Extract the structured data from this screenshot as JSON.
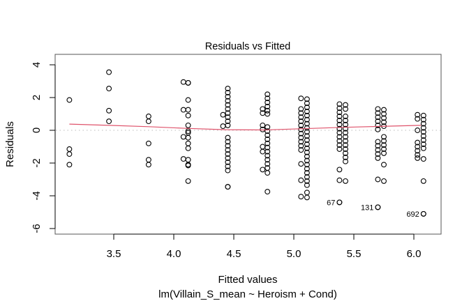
{
  "chart_data": {
    "type": "scatter",
    "title": "Residuals vs Fitted",
    "xlabel": "Fitted values",
    "sublabel": "lm(Villain_S_mean ~ Heroism + Cond)",
    "ylabel": "Residuals",
    "xlim": [
      3.07,
      6.18
    ],
    "ylim": [
      -6.3,
      4.4
    ],
    "x_ticks": [
      3.5,
      4.0,
      4.5,
      5.0,
      5.5,
      6.0
    ],
    "x_tick_labels": [
      "3.5",
      "4.0",
      "4.5",
      "5.0",
      "5.5",
      "6.0"
    ],
    "y_ticks": [
      4,
      2,
      0,
      -2,
      -4,
      -6
    ],
    "y_tick_labels": [
      "4",
      "2",
      "0",
      "-2",
      "-4",
      "-6"
    ],
    "reference_line": {
      "y": 0,
      "style": "dotted",
      "color": "#bbbbbb"
    },
    "smooth_line": {
      "color": "#df536b",
      "x": [
        3.13,
        3.46,
        3.79,
        4.1,
        4.43,
        4.76,
        5.08,
        5.4,
        5.72,
        6.06
      ],
      "y": [
        0.38,
        0.3,
        0.22,
        0.12,
        0.04,
        0.02,
        0.1,
        0.18,
        0.24,
        0.3
      ]
    },
    "columns": [
      {
        "x": 3.13,
        "y": [
          1.85,
          -1.15,
          -1.45,
          -2.1
        ]
      },
      {
        "x": 3.46,
        "y": [
          3.55,
          2.55,
          1.2,
          0.55
        ]
      },
      {
        "x": 3.79,
        "y": [
          0.85,
          0.55,
          -0.8,
          -1.8,
          -2.1
        ]
      },
      {
        "x": 4.08,
        "y": [
          2.95,
          1.25,
          -0.4,
          -1.75
        ]
      },
      {
        "x": 4.12,
        "y": [
          2.9,
          2.9,
          1.85,
          1.25,
          0.9,
          0.3,
          -0.05,
          -0.15,
          -0.45,
          -0.8,
          -1.1,
          -1.8,
          -2.1,
          -2.15,
          -3.1
        ]
      },
      {
        "x": 4.41,
        "y": [
          0.95,
          0.25
        ]
      },
      {
        "x": 4.45,
        "y": [
          2.55,
          2.3,
          2.05,
          1.8,
          1.55,
          1.3,
          1.05,
          0.8,
          0.55,
          0.3,
          -0.45,
          -0.7,
          -0.95,
          -1.2,
          -1.45,
          -1.7,
          -1.95,
          -2.2,
          -2.45,
          -3.45,
          -3.45
        ]
      },
      {
        "x": 4.74,
        "y": [
          1.3,
          1.05,
          0.3,
          0.05,
          -1.0,
          -1.3,
          -2.4
        ]
      },
      {
        "x": 4.78,
        "y": [
          2.2,
          1.95,
          1.7,
          1.45,
          1.2,
          1.0,
          0.2,
          -0.05,
          -0.3,
          -0.55,
          -0.8,
          -1.05,
          -1.3,
          -1.55,
          -1.8,
          -2.05,
          -2.3,
          -2.6,
          -3.75
        ]
      },
      {
        "x": 5.06,
        "y": [
          1.95,
          1.3,
          1.05,
          0.8,
          0.55,
          0.3,
          0.05,
          -0.2,
          -0.45,
          -0.7,
          -0.95,
          -1.2,
          -2.05,
          -3.05,
          -4.05
        ]
      },
      {
        "x": 5.11,
        "y": [
          1.9,
          1.65,
          1.4,
          1.15,
          0.9,
          0.65,
          0.4,
          0.15,
          -0.1,
          -0.35,
          -0.6,
          -0.85,
          -1.1,
          -1.35,
          -1.6,
          -1.85,
          -2.1,
          -2.35,
          -2.6,
          -2.85,
          -3.1,
          -3.35,
          -3.8,
          -4.1
        ]
      },
      {
        "x": 5.38,
        "y": [
          1.6,
          1.35,
          1.1,
          0.85,
          0.6,
          0.35,
          0.1,
          -0.15,
          -0.4,
          -0.65,
          -0.9,
          -1.15,
          -2.4,
          -3.05,
          -4.4
        ]
      },
      {
        "x": 5.43,
        "y": [
          1.55,
          1.3,
          0.85,
          0.6,
          0.35,
          0.1,
          -0.15,
          -0.4,
          -0.65,
          -0.9,
          -1.15,
          -1.4,
          -1.65,
          -1.9,
          -3.1
        ]
      },
      {
        "x": 5.7,
        "y": [
          1.3,
          1.05,
          0.8,
          0.55,
          0.3,
          0.05,
          -0.7,
          -0.95,
          -1.2,
          -1.45,
          -1.7,
          -3.0,
          -4.7
        ]
      },
      {
        "x": 5.75,
        "y": [
          1.25,
          1.0,
          0.75,
          0.5,
          0.25,
          -0.4,
          -0.65,
          -0.9,
          -1.15,
          -1.4,
          -2.1,
          -3.1
        ]
      },
      {
        "x": 6.03,
        "y": [
          0.95,
          0.7,
          0.0,
          -0.75,
          -1.0,
          -1.25,
          -1.5,
          -1.7
        ]
      },
      {
        "x": 6.08,
        "y": [
          0.9,
          0.65,
          0.4,
          0.15,
          -0.1,
          -0.35,
          -0.6,
          -0.85,
          -1.1,
          -1.75,
          -3.1,
          -5.1
        ]
      }
    ],
    "labeled_points": [
      {
        "label": "67",
        "x": 5.38,
        "y": -4.4
      },
      {
        "label": "131",
        "x": 5.7,
        "y": -4.7
      },
      {
        "label": "692",
        "x": 6.08,
        "y": -5.1
      }
    ],
    "grid": false,
    "legend": "none"
  }
}
